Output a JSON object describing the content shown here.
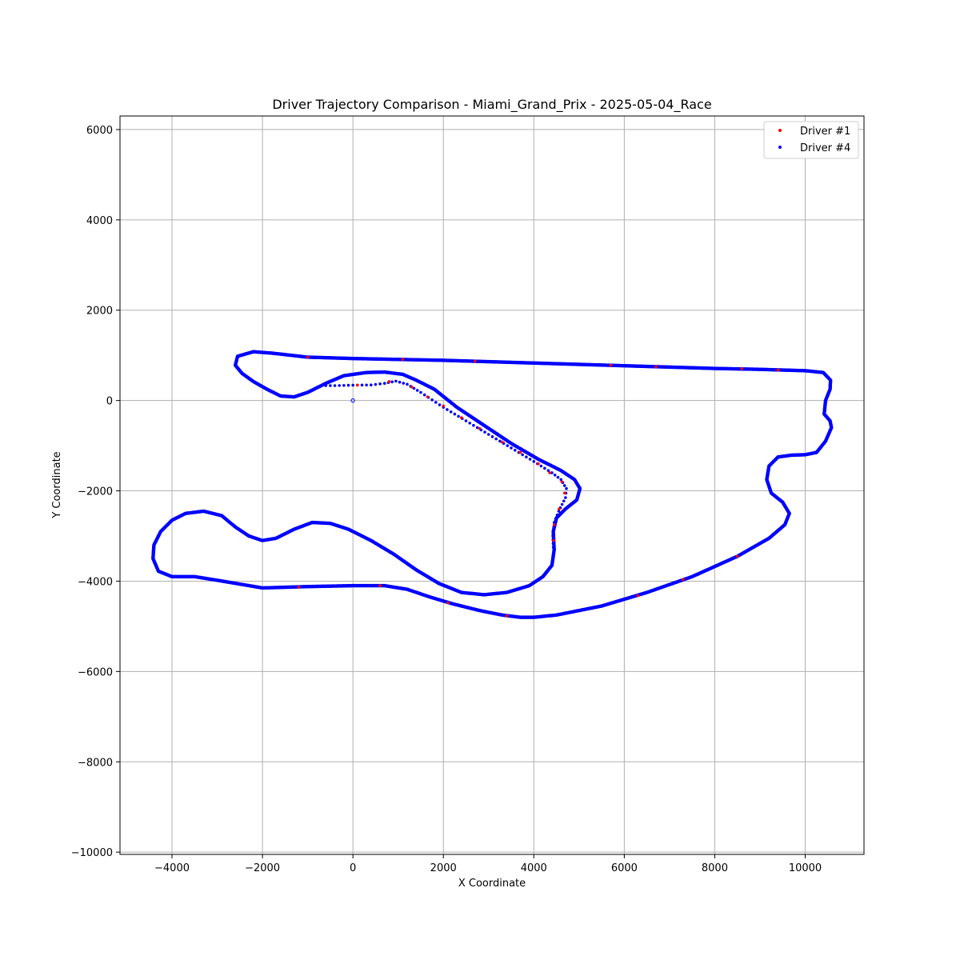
{
  "chart_data": {
    "type": "scatter",
    "title": "Driver Trajectory Comparison - Miami_Grand_Prix - 2025-05-04_Race",
    "xlabel": "X Coordinate",
    "ylabel": "Y Coordinate",
    "xlim": [
      -5150,
      11300
    ],
    "ylim": [
      -10050,
      6300
    ],
    "xticks": [
      -4000,
      -2000,
      0,
      2000,
      4000,
      6000,
      8000,
      10000
    ],
    "yticks": [
      -10000,
      -8000,
      -6000,
      -4000,
      -2000,
      0,
      2000,
      4000,
      6000
    ],
    "xtick_labels": [
      "−4000",
      "−2000",
      "0",
      "2000",
      "4000",
      "6000",
      "8000",
      "10000"
    ],
    "ytick_labels": [
      "−10000",
      "−8000",
      "−6000",
      "−4000",
      "−2000",
      "0",
      "2000",
      "4000",
      "6000"
    ],
    "grid": true,
    "legend_position": "top-right",
    "series": [
      {
        "name": "Driver #1",
        "color": "#ff0000"
      },
      {
        "name": "Driver #4",
        "color": "#0000ff"
      }
    ],
    "track": [
      [
        -2200,
        1080
      ],
      [
        -1800,
        1050
      ],
      [
        -1000,
        960
      ],
      [
        0,
        930
      ],
      [
        1000,
        910
      ],
      [
        2000,
        890
      ],
      [
        3000,
        860
      ],
      [
        4000,
        830
      ],
      [
        5000,
        800
      ],
      [
        6000,
        770
      ],
      [
        7000,
        740
      ],
      [
        8000,
        710
      ],
      [
        9000,
        690
      ],
      [
        10000,
        660
      ],
      [
        10400,
        620
      ],
      [
        10560,
        450
      ],
      [
        10550,
        250
      ],
      [
        10450,
        0
      ],
      [
        10420,
        -300
      ],
      [
        10550,
        -450
      ],
      [
        10580,
        -600
      ],
      [
        10450,
        -900
      ],
      [
        10250,
        -1150
      ],
      [
        10000,
        -1200
      ],
      [
        9700,
        -1210
      ],
      [
        9400,
        -1250
      ],
      [
        9200,
        -1450
      ],
      [
        9150,
        -1750
      ],
      [
        9250,
        -2050
      ],
      [
        9500,
        -2250
      ],
      [
        9650,
        -2500
      ],
      [
        9550,
        -2750
      ],
      [
        9200,
        -3050
      ],
      [
        8500,
        -3450
      ],
      [
        7500,
        -3900
      ],
      [
        6500,
        -4250
      ],
      [
        5500,
        -4550
      ],
      [
        4500,
        -4750
      ],
      [
        4000,
        -4800
      ],
      [
        3700,
        -4800
      ],
      [
        3300,
        -4750
      ],
      [
        2800,
        -4650
      ],
      [
        2200,
        -4500
      ],
      [
        1700,
        -4350
      ],
      [
        1200,
        -4180
      ],
      [
        700,
        -4100
      ],
      [
        0,
        -4100
      ],
      [
        -1000,
        -4120
      ],
      [
        -2000,
        -4150
      ],
      [
        -3000,
        -3980
      ],
      [
        -3500,
        -3900
      ],
      [
        -4000,
        -3900
      ],
      [
        -4300,
        -3780
      ],
      [
        -4420,
        -3500
      ],
      [
        -4400,
        -3200
      ],
      [
        -4250,
        -2900
      ],
      [
        -4000,
        -2650
      ],
      [
        -3700,
        -2500
      ],
      [
        -3300,
        -2450
      ],
      [
        -2900,
        -2550
      ],
      [
        -2600,
        -2800
      ],
      [
        -2300,
        -3000
      ],
      [
        -2000,
        -3100
      ],
      [
        -1700,
        -3050
      ],
      [
        -1300,
        -2850
      ],
      [
        -900,
        -2700
      ],
      [
        -500,
        -2720
      ],
      [
        -100,
        -2850
      ],
      [
        400,
        -3100
      ],
      [
        900,
        -3400
      ],
      [
        1400,
        -3750
      ],
      [
        1900,
        -4050
      ],
      [
        2400,
        -4250
      ],
      [
        2900,
        -4300
      ],
      [
        3400,
        -4250
      ],
      [
        3900,
        -4100
      ],
      [
        4200,
        -3900
      ],
      [
        4400,
        -3650
      ],
      [
        4450,
        -3300
      ],
      [
        4430,
        -2900
      ],
      [
        4500,
        -2600
      ],
      [
        4700,
        -2400
      ],
      [
        4950,
        -2200
      ],
      [
        5020,
        -1950
      ],
      [
        4900,
        -1750
      ],
      [
        4600,
        -1550
      ],
      [
        4100,
        -1300
      ],
      [
        3500,
        -950
      ],
      [
        2900,
        -550
      ],
      [
        2300,
        -150
      ],
      [
        1800,
        250
      ],
      [
        1400,
        450
      ],
      [
        1100,
        580
      ],
      [
        700,
        630
      ],
      [
        300,
        620
      ],
      [
        -200,
        550
      ],
      [
        -600,
        380
      ],
      [
        -1000,
        180
      ],
      [
        -1300,
        80
      ],
      [
        -1600,
        100
      ],
      [
        -1900,
        250
      ],
      [
        -2200,
        420
      ],
      [
        -2450,
        600
      ],
      [
        -2600,
        780
      ],
      [
        -2550,
        980
      ],
      [
        -2200,
        1080
      ]
    ],
    "pit_lane": [
      [
        -700,
        330
      ],
      [
        -400,
        330
      ],
      [
        0,
        340
      ],
      [
        400,
        345
      ],
      [
        700,
        380
      ],
      [
        950,
        430
      ],
      [
        1200,
        360
      ],
      [
        1500,
        180
      ],
      [
        2000,
        -150
      ],
      [
        2500,
        -450
      ],
      [
        3000,
        -750
      ],
      [
        3500,
        -1050
      ],
      [
        4000,
        -1350
      ],
      [
        4400,
        -1600
      ],
      [
        4600,
        -1750
      ],
      [
        4720,
        -1950
      ],
      [
        4700,
        -2150
      ],
      [
        4550,
        -2450
      ],
      [
        4450,
        -2700
      ],
      [
        4420,
        -3000
      ],
      [
        4430,
        -3250
      ]
    ],
    "driver1_markers": [
      [
        -1000,
        960
      ],
      [
        1100,
        910
      ],
      [
        2700,
        870
      ],
      [
        5700,
        780
      ],
      [
        6700,
        750
      ],
      [
        8600,
        705
      ],
      [
        9400,
        680
      ],
      [
        1300,
        300
      ],
      [
        1650,
        80
      ],
      [
        2000,
        -120
      ],
      [
        2400,
        -380
      ],
      [
        2800,
        -620
      ],
      [
        3300,
        -920
      ],
      [
        3700,
        -1150
      ],
      [
        4100,
        -1400
      ],
      [
        4350,
        -1600
      ],
      [
        4620,
        -1800
      ],
      [
        4680,
        -2050
      ],
      [
        4560,
        -2400
      ],
      [
        4450,
        -2750
      ],
      [
        4440,
        -3100
      ],
      [
        600,
        -4100
      ],
      [
        -1200,
        -4130
      ],
      [
        2100,
        -4480
      ],
      [
        3400,
        -4770
      ],
      [
        6300,
        -4320
      ],
      [
        7300,
        -3960
      ],
      [
        8500,
        -3450
      ],
      [
        100,
        340
      ],
      [
        800,
        420
      ]
    ],
    "origin_marker": [
      0,
      0
    ]
  }
}
